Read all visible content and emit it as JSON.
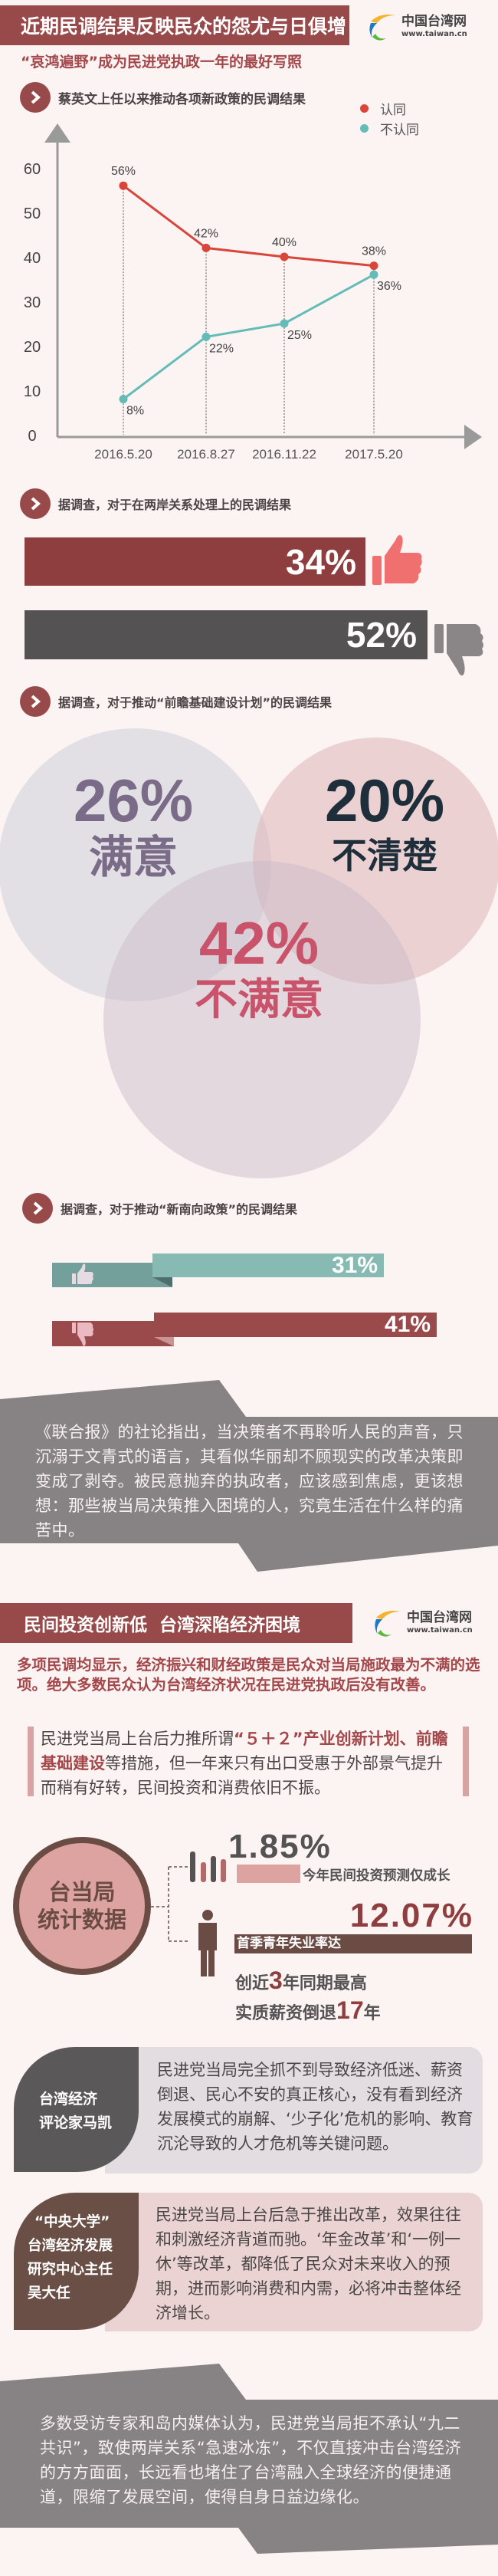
{
  "logo": {
    "name": "中国台湾网",
    "url": "www.taiwan.cn"
  },
  "section1": {
    "title": "近期民调结果反映民众的怨尤与日俱增",
    "subtitle": "“哀鸿遍野”成为民进党执政一年的最好写照"
  },
  "chart_header": "蔡英文上任以来推动各项新政策的民调结果",
  "chart_data": {
    "type": "line",
    "categories": [
      "2016.5.20",
      "2016.8.27",
      "2016.11.22",
      "2017.5.20"
    ],
    "series": [
      {
        "name": "认同",
        "values": [
          56,
          42,
          40,
          38
        ],
        "color": "#d9453b"
      },
      {
        "name": "不认同",
        "values": [
          8,
          22,
          25,
          36
        ],
        "color": "#63bcb7"
      }
    ],
    "yticks": [
      0,
      10,
      20,
      30,
      40,
      50,
      60
    ],
    "ylim": [
      0,
      60
    ],
    "value_suffix": "%",
    "grid": false,
    "legend": "top-right"
  },
  "cross_strait": {
    "header": "据调查，对于在两岸关系处理上的民调结果",
    "approve": {
      "label": "34%",
      "value": 34,
      "color": "#8f3e3f",
      "icon": "thumbs-up-icon"
    },
    "disapprove": {
      "label": "52%",
      "value": 52,
      "color": "#555253",
      "icon": "thumbs-down-icon"
    }
  },
  "infrastructure": {
    "header": "据调查，对于推动“前瞻基础建设计划”的民调结果",
    "satisfied": {
      "value": "26%",
      "label": "满意",
      "color": "#7a6c88"
    },
    "unclear": {
      "value": "20%",
      "label": "不清楚",
      "color": "#1e2f3b"
    },
    "dissatisfied": {
      "value": "42%",
      "label": "不满意",
      "color": "#c8536a"
    }
  },
  "new_southbound": {
    "header": "据调查，对于推动“新南向政策”的民调结果",
    "approve": {
      "label": "31%",
      "value": 31,
      "icon": "thumbs-up-icon"
    },
    "disapprove": {
      "label": "41%",
      "value": 41,
      "icon": "thumbs-down-icon"
    }
  },
  "editorial": "《联合报》的社论指出，当决策者不再聆听人民的声音，只沉溺于文青式的语言，其看似华丽却不顾现实的改革决策即变成了剥夺。被民意抛弃的执政者，应该感到焦虑，更该想想：那些被当局决策推入困境的人，究竟生活在什么样的痛苦中。",
  "section2": {
    "title": "民间投资创新低  台湾深陷经济困境",
    "intro": "多项民调均显示，经济振兴和财经政策是民众对当局施政最为不满的选项。绝大多数民众认为台湾经济状况在民进党执政后没有改善。",
    "quote": {
      "part1": "民进党当局上台后力推所谓",
      "hl1": "“５＋２”产业创新计划、前瞻基础建设",
      "part2": "等措施，但一年来只有出口受惠于外部景气提升而稍有好转，民间投资和消费依旧不振。"
    },
    "stats": {
      "circle_line1": "台当局",
      "circle_line2": "统计数据",
      "investment_value": "1.85%",
      "investment_label": "今年民间投资预测仅成长",
      "unemployment_value": "12.07%",
      "unemployment_label": "首季青年失业率达",
      "line3_pre": "创近",
      "line3_num": "3",
      "line3_post": "年同期最高",
      "line4_pre": "实质薪资倒退",
      "line4_num": "17",
      "line4_post": "年"
    },
    "experts": [
      {
        "name_lines": [
          "台湾经济",
          "评论家马凯"
        ],
        "text": "民进党当局完全抓不到导致经济低迷、薪资倒退、民心不安的真正核心，没有看到经济发展模式的崩解、‘少子化’危机的影响、教育沉沦导致的人才危机等关键问题。"
      },
      {
        "name_lines": [
          "“中央大学”",
          "台湾经济发展",
          "研究中心主任",
          "吴大任"
        ],
        "text": "民进党当局上台后急于推出改革，效果往往和刺激经济背道而驰。‘年金改革’和‘一例一休’等改革，都降低了民众对未来收入的预期，进而影响消费和内需，必将冲击整体经济增长。"
      }
    ],
    "conclusion": "多数受访专家和岛内媒体认为，民进党当局拒不承认“九二共识”，致使两岸关系“急速冰冻”，不仅直接冲击台湾经济的方方面面，长远看也堵住了台湾融入全球经济的便捷通道，限缩了发展空间，使得自身日益边缘化。"
  }
}
